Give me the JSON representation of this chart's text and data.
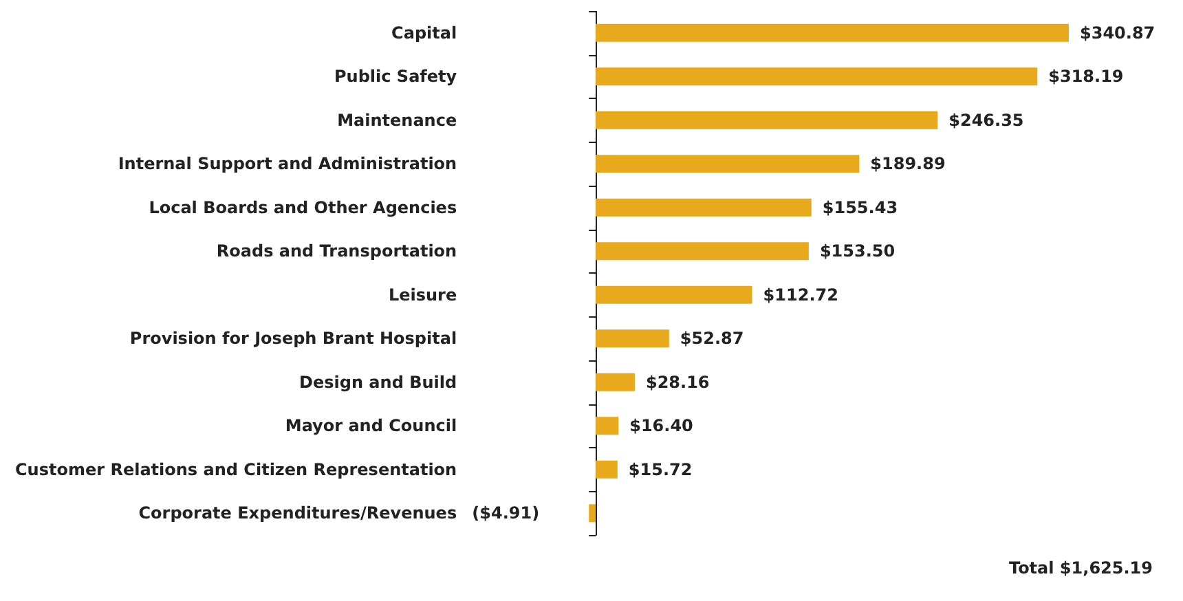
{
  "chart_data": {
    "type": "bar",
    "orientation": "horizontal",
    "categories": [
      "Capital",
      "Public Safety",
      "Maintenance",
      "Internal Support and Administration",
      "Local Boards and Other Agencies",
      "Roads and Transportation",
      "Leisure",
      "Provision for Joseph Brant Hospital",
      "Design and Build",
      "Mayor and Council",
      "Customer Relations and Citizen Representation",
      "Corporate Expenditures/Revenues"
    ],
    "values": [
      340.87,
      318.19,
      246.35,
      189.89,
      155.43,
      153.5,
      112.72,
      52.87,
      28.16,
      16.4,
      15.72,
      -4.91
    ],
    "value_labels": [
      "$340.87",
      "$318.19",
      "$246.35",
      "$189.89",
      "$155.43",
      "$153.50",
      "$112.72",
      "$52.87",
      "$28.16",
      "$16.40",
      "$15.72",
      "($4.91)"
    ],
    "color": "#e8a91c",
    "annotations": [
      "Total $1,625.19"
    ]
  }
}
